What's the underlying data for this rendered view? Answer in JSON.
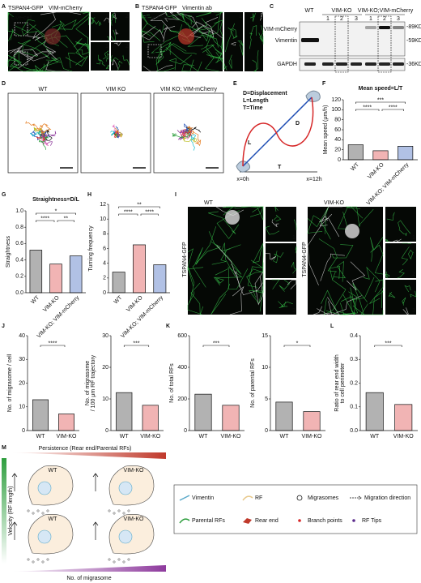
{
  "letters": [
    "A",
    "B",
    "C",
    "D",
    "E",
    "F",
    "G",
    "H",
    "I",
    "J",
    "K",
    "L",
    "M"
  ],
  "panels": {
    "A": {
      "green": "TSPAN4-GFP",
      "red": "VIM-mCherry",
      "inner": "Live-cell",
      "insets": [
        "1",
        "2",
        "1",
        "2"
      ],
      "boxes": [
        "1",
        "2"
      ]
    },
    "B": {
      "green": "TSPAN4-GFP",
      "red": "Vimentin ab",
      "inner": "Fixed cell",
      "insets": [
        "1",
        "1"
      ],
      "boxes": [
        "1"
      ]
    },
    "C": {
      "groups": [
        "WT",
        "VIM-KO",
        "VIM-KO;VIM-mCherry"
      ],
      "lanes": [
        "1",
        "2",
        "3",
        "1",
        "2",
        "3"
      ],
      "rows": [
        "VIM-mCherry",
        "Vimentin",
        "GAPDH"
      ],
      "markers": [
        "-89KD",
        "-59KD",
        "-36KD"
      ]
    },
    "D": {
      "titles": [
        "WT",
        "VIM KO",
        "VIM KO; VIM-mCherry"
      ]
    },
    "E": {
      "legend": [
        "D=Displacement",
        "L=Length",
        "T=Time"
      ],
      "marks": [
        "D",
        "L",
        "T"
      ],
      "times": [
        "x=0h",
        "x=12h"
      ]
    },
    "I": {
      "titles": [
        "WT",
        "VIM-KO"
      ],
      "side": [
        "TSPAN4-GFP",
        "TSPAN4-GFP"
      ],
      "insets": [
        "1",
        "2",
        "3",
        "1",
        "2",
        "3"
      ]
    },
    "M": {
      "top": "Persistence (Rear end/Parental RFs)",
      "left": "Velocity (RF length)",
      "bottom": "No. of migrasome",
      "cells": [
        "WT",
        "VIM-KO",
        "WT",
        "VIM-KO"
      ],
      "legend": [
        "Vimentin",
        "RF",
        "Migrasomes",
        "Migration direction",
        "Parental RFs",
        "Rear end",
        "Branch points",
        "RF Tips"
      ]
    }
  },
  "chart_data": [
    {
      "type": "bar",
      "title": "Mean speed=L/T",
      "ylabel": [
        "Mean speed (μm/h)"
      ],
      "categories": [
        "WT",
        "VIM-KO",
        "VIM-KO; VIM-mCherry"
      ],
      "values": [
        30,
        18,
        27
      ],
      "colors": [
        "#222222",
        "#d62728",
        "#1f4eb4"
      ],
      "ylim": [
        0,
        120
      ],
      "yticks": [
        0,
        20,
        40,
        60,
        80,
        100,
        120
      ],
      "annotations": [
        "****",
        "****",
        "***"
      ]
    },
    {
      "type": "bar",
      "title": "Straightness=D/L",
      "ylabel": [
        "Straightness"
      ],
      "categories": [
        "WT",
        "VIM-KO",
        "VIM-KO; VIM-mCherry"
      ],
      "values": [
        0.52,
        0.35,
        0.45
      ],
      "colors": [
        "#222222",
        "#d62728",
        "#1f4eb4"
      ],
      "ylim": [
        0,
        1
      ],
      "yticks": [
        {
          "value": 0,
          "label": "0.0"
        },
        0.2,
        0.4,
        0.6,
        0.8,
        {
          "value": 1,
          "label": "1.0"
        }
      ],
      "annotations": [
        "****",
        "**",
        "*"
      ]
    },
    {
      "type": "bar",
      "ylabel": [
        "Turning frequency"
      ],
      "categories": [
        "WT",
        "VIM-KO",
        "VIM-KO; VIM-mCherry"
      ],
      "values": [
        2.8,
        6.5,
        3.8
      ],
      "colors": [
        "#222222",
        "#d62728",
        "#1f4eb4"
      ],
      "ylim": [
        0,
        12
      ],
      "yticks": [
        0,
        2,
        4,
        6,
        8,
        10,
        12
      ],
      "annotations": [
        "****",
        "****",
        "**"
      ]
    },
    {
      "type": "bar",
      "ylabel": [
        "No. of migrasome / cell"
      ],
      "categories": [
        "WT",
        "VIM-KO"
      ],
      "values": [
        13,
        7
      ],
      "colors": [
        "#222222",
        "#d62728"
      ],
      "ylim": [
        0,
        40
      ],
      "yticks": [
        0,
        10,
        20,
        30,
        40
      ],
      "annotations": [
        "****"
      ]
    },
    {
      "type": "bar",
      "ylabel": [
        "No. of migrasome",
        "/ 100 μm RF trajectory"
      ],
      "categories": [
        "WT",
        "VIM-KO"
      ],
      "values": [
        12,
        8
      ],
      "colors": [
        "#222222",
        "#d62728"
      ],
      "ylim": [
        0,
        30
      ],
      "yticks": [
        0,
        10,
        20,
        30
      ],
      "annotations": [
        "***"
      ]
    },
    {
      "type": "bar",
      "ylabel": [
        "No. of total RFs"
      ],
      "categories": [
        "WT",
        "VIM-KO"
      ],
      "values": [
        230,
        160
      ],
      "colors": [
        "#222222",
        "#d62728"
      ],
      "ylim": [
        0,
        600
      ],
      "yticks": [
        0,
        200,
        400,
        600
      ],
      "annotations": [
        "***"
      ]
    },
    {
      "type": "bar",
      "ylabel": [
        "No. of parental RFs"
      ],
      "categories": [
        "WT",
        "VIM-KO"
      ],
      "values": [
        4.5,
        3
      ],
      "colors": [
        "#222222",
        "#d62728"
      ],
      "ylim": [
        0,
        15
      ],
      "yticks": [
        0,
        5,
        10,
        15
      ],
      "annotations": [
        "*"
      ]
    },
    {
      "type": "bar",
      "ylabel": [
        "Ratio of rear end width",
        "to cell perimeter"
      ],
      "categories": [
        "WT",
        "VIM-KO"
      ],
      "values": [
        0.16,
        0.11
      ],
      "colors": [
        "#222222",
        "#d62728"
      ],
      "ylim": [
        0,
        0.4
      ],
      "yticks": [
        {
          "value": 0,
          "label": "0.0"
        },
        0.1,
        0.2,
        0.3,
        0.4
      ],
      "annotations": [
        "***"
      ]
    }
  ]
}
